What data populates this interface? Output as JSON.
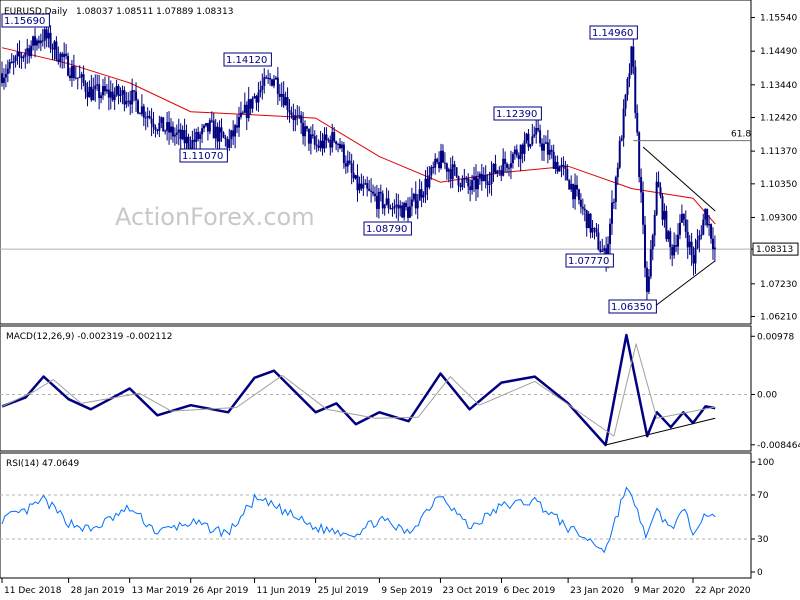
{
  "chart_data": [
    {
      "type": "candlestick",
      "header": {
        "symbol": "EURUSD,Daily",
        "ohlc": "1.08037 1.08511 1.07889 1.08313"
      },
      "watermark": "ActionForex.com",
      "y_ticks": [
        "1.15540",
        "1.14490",
        "1.13440",
        "1.12420",
        "1.11370",
        "1.10350",
        "1.09300",
        "1.08313",
        "1.07230",
        "1.06210"
      ],
      "ylim": [
        1.061,
        1.159
      ],
      "current_price": 1.08313,
      "current_price_label": "1.08313",
      "fib_level": {
        "label": "61.8",
        "value": 1.117
      },
      "ma_color": "#e00000",
      "candle_color": "#000080",
      "x_ticks": [
        "11 Dec 2018",
        "28 Jan 2019",
        "13 Mar 2019",
        "26 Apr 2019",
        "11 Jun 2019",
        "25 Jul 2019",
        "9 Sep 2019",
        "23 Oct 2019",
        "6 Dec 2019",
        "23 Jan 2020",
        "9 Mar 2020",
        "22 Apr 2020"
      ],
      "annotations": [
        {
          "label": "1.15690",
          "value": 1.1569
        },
        {
          "label": "1.14120",
          "value": 1.1412
        },
        {
          "label": "1.11070",
          "value": 1.1107
        },
        {
          "label": "1.08790",
          "value": 1.0879
        },
        {
          "label": "1.12390",
          "value": 1.1239
        },
        {
          "label": "1.14960",
          "value": 1.1496
        },
        {
          "label": "1.07770",
          "value": 1.0777
        },
        {
          "label": "1.06350",
          "value": 1.0635
        }
      ],
      "price_path": [
        {
          "x": "11 Dec 2018",
          "y": 1.138
        },
        {
          "x": "18 Dec 2018",
          "y": 1.14
        },
        {
          "x": "28 Dec 2018",
          "y": 1.145
        },
        {
          "x": "10 Jan 2019",
          "y": 1.15
        },
        {
          "x": "28 Jan 2019",
          "y": 1.14
        },
        {
          "x": "13 Feb 2019",
          "y": 1.132
        },
        {
          "x": "13 Mar 2019",
          "y": 1.131
        },
        {
          "x": "2 Apr 2019",
          "y": 1.122
        },
        {
          "x": "26 Apr 2019",
          "y": 1.116
        },
        {
          "x": "10 May 2019",
          "y": 1.121
        },
        {
          "x": "23 May 2019",
          "y": 1.116
        },
        {
          "x": "11 Jun 2019",
          "y": 1.131
        },
        {
          "x": "25 Jun 2019",
          "y": 1.137
        },
        {
          "x": "10 Jul 2019",
          "y": 1.124
        },
        {
          "x": "25 Jul 2019",
          "y": 1.115
        },
        {
          "x": "9 Aug 2019",
          "y": 1.118
        },
        {
          "x": "23 Aug 2019",
          "y": 1.103
        },
        {
          "x": "9 Sep 2019",
          "y": 1.098
        },
        {
          "x": "30 Sep 2019",
          "y": 1.095
        },
        {
          "x": "23 Oct 2019",
          "y": 1.111
        },
        {
          "x": "13 Nov 2019",
          "y": 1.102
        },
        {
          "x": "6 Dec 2019",
          "y": 1.109
        },
        {
          "x": "30 Dec 2019",
          "y": 1.119
        },
        {
          "x": "23 Jan 2020",
          "y": 1.105
        },
        {
          "x": "19 Feb 2020",
          "y": 1.08
        },
        {
          "x": "9 Mar 2020",
          "y": 1.145
        },
        {
          "x": "20 Mar 2020",
          "y": 1.067
        },
        {
          "x": "27 Mar 2020",
          "y": 1.104
        },
        {
          "x": "6 Apr 2020",
          "y": 1.082
        },
        {
          "x": "15 Apr 2020",
          "y": 1.093
        },
        {
          "x": "22 Apr 2020",
          "y": 1.079
        },
        {
          "x": "1 May 2020",
          "y": 1.095
        },
        {
          "x": "8 May 2020",
          "y": 1.083
        }
      ],
      "ma_path": [
        {
          "x": "11 Dec 2018",
          "y": 1.146
        },
        {
          "x": "28 Jan 2019",
          "y": 1.141
        },
        {
          "x": "13 Mar 2019",
          "y": 1.135
        },
        {
          "x": "26 Apr 2019",
          "y": 1.126
        },
        {
          "x": "11 Jun 2019",
          "y": 1.125
        },
        {
          "x": "25 Jul 2019",
          "y": 1.124
        },
        {
          "x": "9 Sep 2019",
          "y": 1.112
        },
        {
          "x": "23 Oct 2019",
          "y": 1.104
        },
        {
          "x": "6 Dec 2019",
          "y": 1.107
        },
        {
          "x": "23 Jan 2020",
          "y": 1.109
        },
        {
          "x": "9 Mar 2020",
          "y": 1.102
        },
        {
          "x": "22 Apr 2020",
          "y": 1.099
        },
        {
          "x": "8 May 2020",
          "y": 1.091
        }
      ],
      "trendlines": [
        {
          "name": "triangle-upper",
          "from": {
            "x": "17 Mar 2020",
            "y": 1.115
          },
          "to": {
            "x": "8 May 2020",
            "y": 1.095
          }
        },
        {
          "name": "triangle-lower",
          "from": {
            "x": "20 Mar 2020",
            "y": 1.0635
          },
          "to": {
            "x": "8 May 2020",
            "y": 1.0795
          }
        }
      ]
    },
    {
      "type": "line",
      "header": "MACD(12,26,9) -0.002319 -0.002112",
      "y_ticks": [
        "0.00978",
        "0.00",
        "-0.008464"
      ],
      "ylim": [
        -0.009,
        0.0105
      ],
      "zero_line": 0,
      "series": [
        {
          "role": "macd",
          "color": "#000080",
          "points": [
            {
              "x": "11 Dec 2018",
              "y": -0.002
            },
            {
              "x": "28 Dec 2018",
              "y": -0.0005
            },
            {
              "x": "10 Jan 2019",
              "y": 0.003
            },
            {
              "x": "28 Jan 2019",
              "y": -0.0008
            },
            {
              "x": "13 Feb 2019",
              "y": -0.0025
            },
            {
              "x": "13 Mar 2019",
              "y": 0.001
            },
            {
              "x": "2 Apr 2019",
              "y": -0.0035
            },
            {
              "x": "26 Apr 2019",
              "y": -0.0018
            },
            {
              "x": "23 May 2019",
              "y": -0.003
            },
            {
              "x": "11 Jun 2019",
              "y": 0.0028
            },
            {
              "x": "25 Jun 2019",
              "y": 0.004
            },
            {
              "x": "25 Jul 2019",
              "y": -0.003
            },
            {
              "x": "9 Aug 2019",
              "y": -0.0015
            },
            {
              "x": "23 Aug 2019",
              "y": -0.005
            },
            {
              "x": "9 Sep 2019",
              "y": -0.003
            },
            {
              "x": "30 Sep 2019",
              "y": -0.0045
            },
            {
              "x": "23 Oct 2019",
              "y": 0.0035
            },
            {
              "x": "13 Nov 2019",
              "y": -0.0025
            },
            {
              "x": "6 Dec 2019",
              "y": 0.002
            },
            {
              "x": "30 Dec 2019",
              "y": 0.003
            },
            {
              "x": "23 Jan 2020",
              "y": -0.0015
            },
            {
              "x": "19 Feb 2020",
              "y": -0.0085
            },
            {
              "x": "5 Mar 2020",
              "y": 0.01
            },
            {
              "x": "20 Mar 2020",
              "y": -0.007
            },
            {
              "x": "27 Mar 2020",
              "y": -0.003
            },
            {
              "x": "6 Apr 2020",
              "y": -0.0055
            },
            {
              "x": "15 Apr 2020",
              "y": -0.003
            },
            {
              "x": "22 Apr 2020",
              "y": -0.0048
            },
            {
              "x": "1 May 2020",
              "y": -0.002
            },
            {
              "x": "8 May 2020",
              "y": -0.0023
            }
          ]
        },
        {
          "role": "signal",
          "color": "#a0a0a0",
          "points": [
            {
              "x": "11 Dec 2018",
              "y": -0.002
            },
            {
              "x": "3 Jan 2019",
              "y": 0.0005
            },
            {
              "x": "17 Jan 2019",
              "y": 0.0025
            },
            {
              "x": "6 Feb 2019",
              "y": -0.0015
            },
            {
              "x": "20 Mar 2019",
              "y": 0.0002
            },
            {
              "x": "12 Apr 2019",
              "y": -0.0028
            },
            {
              "x": "29 May 2019",
              "y": -0.0022
            },
            {
              "x": "1 Jul 2019",
              "y": 0.0032
            },
            {
              "x": "2 Aug 2019",
              "y": -0.0025
            },
            {
              "x": "6 Sep 2019",
              "y": -0.004
            },
            {
              "x": "7 Oct 2019",
              "y": -0.0038
            },
            {
              "x": "30 Oct 2019",
              "y": 0.003
            },
            {
              "x": "20 Nov 2019",
              "y": -0.0018
            },
            {
              "x": "30 Dec 2019",
              "y": 0.0022
            },
            {
              "x": "25 Feb 2020",
              "y": -0.007
            },
            {
              "x": "12 Mar 2020",
              "y": 0.0085
            },
            {
              "x": "27 Mar 2020",
              "y": -0.004
            },
            {
              "x": "8 May 2020",
              "y": -0.0021
            }
          ]
        }
      ],
      "trendline": {
        "name": "macd-support-line",
        "from": {
          "x": "19 Feb 2020",
          "y": -0.0085
        },
        "to": {
          "x": "8 May 2020",
          "y": -0.004
        }
      }
    },
    {
      "type": "line",
      "header": "RSI(14) 47.0649",
      "y_ticks": [
        "100",
        "70",
        "30",
        "0"
      ],
      "ylim": [
        0,
        100
      ],
      "levels": [
        70,
        30
      ],
      "series": [
        {
          "role": "rsi",
          "color": "#0070ff",
          "points": [
            {
              "x": "11 Dec 2018",
              "y": 48
            },
            {
              "x": "28 Dec 2018",
              "y": 55
            },
            {
              "x": "10 Jan 2019",
              "y": 66
            },
            {
              "x": "28 Jan 2019",
              "y": 45
            },
            {
              "x": "13 Feb 2019",
              "y": 38
            },
            {
              "x": "13 Mar 2019",
              "y": 58
            },
            {
              "x": "2 Apr 2019",
              "y": 36
            },
            {
              "x": "26 Apr 2019",
              "y": 45
            },
            {
              "x": "23 May 2019",
              "y": 35
            },
            {
              "x": "11 Jun 2019",
              "y": 66
            },
            {
              "x": "25 Jun 2019",
              "y": 60
            },
            {
              "x": "25 Jul 2019",
              "y": 40
            },
            {
              "x": "23 Aug 2019",
              "y": 35
            },
            {
              "x": "9 Sep 2019",
              "y": 48
            },
            {
              "x": "30 Sep 2019",
              "y": 35
            },
            {
              "x": "23 Oct 2019",
              "y": 72
            },
            {
              "x": "13 Nov 2019",
              "y": 40
            },
            {
              "x": "6 Dec 2019",
              "y": 60
            },
            {
              "x": "30 Dec 2019",
              "y": 65
            },
            {
              "x": "23 Jan 2020",
              "y": 40
            },
            {
              "x": "19 Feb 2020",
              "y": 20
            },
            {
              "x": "5 Mar 2020",
              "y": 78
            },
            {
              "x": "20 Mar 2020",
              "y": 32
            },
            {
              "x": "27 Mar 2020",
              "y": 55
            },
            {
              "x": "6 Apr 2020",
              "y": 40
            },
            {
              "x": "15 Apr 2020",
              "y": 55
            },
            {
              "x": "22 Apr 2020",
              "y": 38
            },
            {
              "x": "1 May 2020",
              "y": 55
            },
            {
              "x": "8 May 2020",
              "y": 47
            }
          ]
        }
      ]
    }
  ]
}
